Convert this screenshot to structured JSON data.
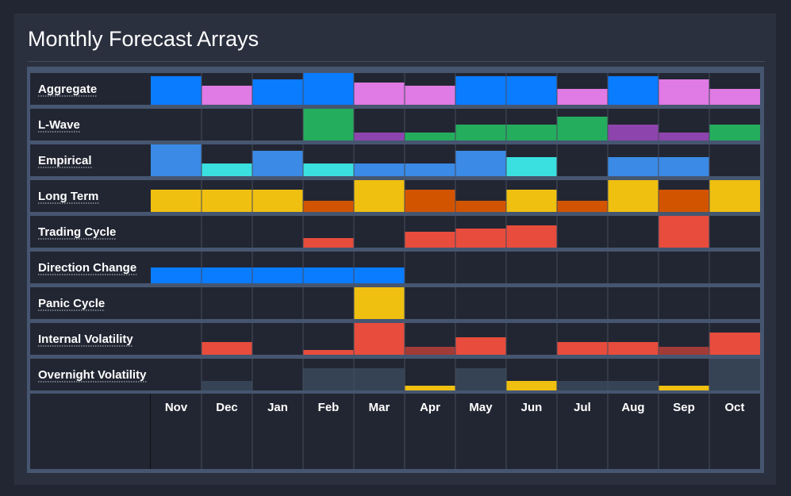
{
  "header": {
    "title": "Monthly Forecast Arrays"
  },
  "chart_data": {
    "type": "heatmap",
    "title": "Monthly Forecast Arrays",
    "categories": [
      "Nov",
      "Dec",
      "Jan",
      "Feb",
      "Mar",
      "Apr",
      "May",
      "Jun",
      "Jul",
      "Aug",
      "Sep",
      "Oct"
    ],
    "value_range": [
      0,
      1
    ],
    "rows": [
      {
        "name": "Aggregate",
        "cells": [
          {
            "v": 0.9,
            "c": "#0a7cff"
          },
          {
            "v": 0.6,
            "c": "#e07ae4"
          },
          {
            "v": 0.8,
            "c": "#0a7cff"
          },
          {
            "v": 1.0,
            "c": "#0a7cff"
          },
          {
            "v": 0.7,
            "c": "#e07ae4"
          },
          {
            "v": 0.6,
            "c": "#e07ae4"
          },
          {
            "v": 0.9,
            "c": "#0a7cff"
          },
          {
            "v": 0.9,
            "c": "#0a7cff"
          },
          {
            "v": 0.5,
            "c": "#e07ae4"
          },
          {
            "v": 0.9,
            "c": "#0a7cff"
          },
          {
            "v": 0.8,
            "c": "#e07ae4"
          },
          {
            "v": 0.5,
            "c": "#e07ae4"
          }
        ]
      },
      {
        "name": "L-Wave",
        "cells": [
          {
            "v": 0,
            "c": ""
          },
          {
            "v": 0,
            "c": ""
          },
          {
            "v": 0,
            "c": ""
          },
          {
            "v": 1.0,
            "c": "#25ad5e"
          },
          {
            "v": 0.25,
            "c": "#8e44ad"
          },
          {
            "v": 0.25,
            "c": "#25ad5e"
          },
          {
            "v": 0.5,
            "c": "#25ad5e"
          },
          {
            "v": 0.5,
            "c": "#25ad5e"
          },
          {
            "v": 0.75,
            "c": "#25ad5e"
          },
          {
            "v": 0.5,
            "c": "#8e44ad"
          },
          {
            "v": 0.25,
            "c": "#8e44ad"
          },
          {
            "v": 0.5,
            "c": "#25ad5e"
          }
        ]
      },
      {
        "name": "Empirical",
        "cells": [
          {
            "v": 1.0,
            "c": "#3a8ae6"
          },
          {
            "v": 0.4,
            "c": "#3ae0e0"
          },
          {
            "v": 0.8,
            "c": "#3a8ae6"
          },
          {
            "v": 0.4,
            "c": "#3ae0e0"
          },
          {
            "v": 0.4,
            "c": "#3a8ae6"
          },
          {
            "v": 0.4,
            "c": "#3a8ae6"
          },
          {
            "v": 0.8,
            "c": "#3a8ae6"
          },
          {
            "v": 0.6,
            "c": "#3ae0e0"
          },
          {
            "v": 0,
            "c": ""
          },
          {
            "v": 0.6,
            "c": "#3a8ae6"
          },
          {
            "v": 0.6,
            "c": "#3a8ae6"
          },
          {
            "v": 0,
            "c": ""
          }
        ]
      },
      {
        "name": "Long Term",
        "cells": [
          {
            "v": 0.7,
            "c": "#f0c010"
          },
          {
            "v": 0.7,
            "c": "#f0c010"
          },
          {
            "v": 0.7,
            "c": "#f0c010"
          },
          {
            "v": 0.35,
            "c": "#d35400"
          },
          {
            "v": 1.0,
            "c": "#f0c010"
          },
          {
            "v": 0.7,
            "c": "#d35400"
          },
          {
            "v": 0.35,
            "c": "#d35400"
          },
          {
            "v": 0.7,
            "c": "#f0c010"
          },
          {
            "v": 0.35,
            "c": "#d35400"
          },
          {
            "v": 1.0,
            "c": "#f0c010"
          },
          {
            "v": 0.7,
            "c": "#d35400"
          },
          {
            "v": 1.0,
            "c": "#f0c010"
          }
        ]
      },
      {
        "name": "Trading Cycle",
        "cells": [
          {
            "v": 0,
            "c": ""
          },
          {
            "v": 0,
            "c": ""
          },
          {
            "v": 0,
            "c": ""
          },
          {
            "v": 0.3,
            "c": "#e74c3c"
          },
          {
            "v": 0,
            "c": ""
          },
          {
            "v": 0.5,
            "c": "#e74c3c"
          },
          {
            "v": 0.6,
            "c": "#e74c3c"
          },
          {
            "v": 0.7,
            "c": "#e74c3c"
          },
          {
            "v": 0,
            "c": ""
          },
          {
            "v": 0,
            "c": ""
          },
          {
            "v": 1.0,
            "c": "#e74c3c"
          },
          {
            "v": 0,
            "c": ""
          }
        ]
      },
      {
        "name": "Direction Change",
        "cells": [
          {
            "v": 0.5,
            "c": "#0a7cff"
          },
          {
            "v": 0.5,
            "c": "#0a7cff"
          },
          {
            "v": 0.5,
            "c": "#0a7cff"
          },
          {
            "v": 0.5,
            "c": "#0a7cff"
          },
          {
            "v": 0.5,
            "c": "#0a7cff"
          },
          {
            "v": 0,
            "c": ""
          },
          {
            "v": 0,
            "c": ""
          },
          {
            "v": 0,
            "c": ""
          },
          {
            "v": 0,
            "c": ""
          },
          {
            "v": 0,
            "c": ""
          },
          {
            "v": 0,
            "c": ""
          },
          {
            "v": 0,
            "c": ""
          }
        ]
      },
      {
        "name": "Panic Cycle",
        "cells": [
          {
            "v": 0,
            "c": ""
          },
          {
            "v": 0,
            "c": ""
          },
          {
            "v": 0,
            "c": ""
          },
          {
            "v": 0,
            "c": ""
          },
          {
            "v": 1.0,
            "c": "#f0c010"
          },
          {
            "v": 0,
            "c": ""
          },
          {
            "v": 0,
            "c": ""
          },
          {
            "v": 0,
            "c": ""
          },
          {
            "v": 0,
            "c": ""
          },
          {
            "v": 0,
            "c": ""
          },
          {
            "v": 0,
            "c": ""
          },
          {
            "v": 0,
            "c": ""
          }
        ]
      },
      {
        "name": "Internal Volatility",
        "cells": [
          {
            "v": 0,
            "c": ""
          },
          {
            "v": 0.4,
            "c": "#e74c3c"
          },
          {
            "v": 0,
            "c": ""
          },
          {
            "v": 0.15,
            "c": "#e74c3c"
          },
          {
            "v": 1.0,
            "c": "#e74c3c"
          },
          {
            "v": 0.25,
            "c": "#a23b37"
          },
          {
            "v": 0.55,
            "c": "#e74c3c"
          },
          {
            "v": 0,
            "c": ""
          },
          {
            "v": 0.4,
            "c": "#e74c3c"
          },
          {
            "v": 0.4,
            "c": "#e74c3c"
          },
          {
            "v": 0.25,
            "c": "#a23b37"
          },
          {
            "v": 0.7,
            "c": "#e74c3c"
          }
        ]
      },
      {
        "name": "Overnight Volatility",
        "cells": [
          {
            "v": 0,
            "c": ""
          },
          {
            "v": 0.3,
            "c": "#354355"
          },
          {
            "v": 0,
            "c": ""
          },
          {
            "v": 0.7,
            "c": "#354355"
          },
          {
            "v": 0.7,
            "c": "#354355"
          },
          {
            "v": 0.15,
            "c": "#f0c010"
          },
          {
            "v": 0.7,
            "c": "#354355"
          },
          {
            "v": 0.3,
            "c": "#f0c010"
          },
          {
            "v": 0.3,
            "c": "#354355"
          },
          {
            "v": 0.3,
            "c": "#354355"
          },
          {
            "v": 0.15,
            "c": "#f0c010"
          },
          {
            "v": 1.0,
            "c": "#354355"
          }
        ]
      }
    ]
  }
}
